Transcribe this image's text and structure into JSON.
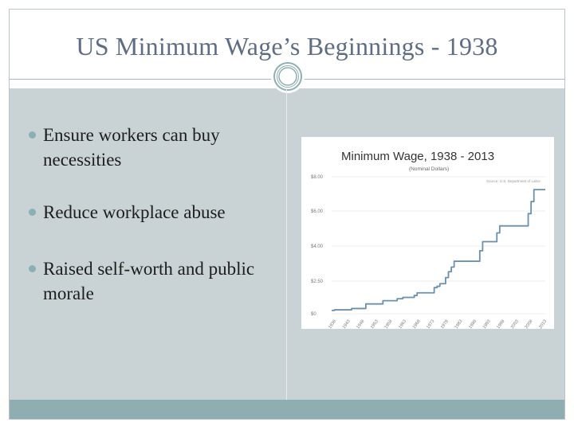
{
  "slide": {
    "title": "US Minimum Wage’s Beginnings - 1938",
    "bullets": [
      "Ensure workers can buy necessities",
      "Reduce workplace abuse",
      "Raised self-worth and public morale"
    ],
    "colors": {
      "title": "#5f6d84",
      "body_bg": "#c9d3d6",
      "footer": "#8faeb2",
      "bullet": "#8ab0b5",
      "line": "#6b90ad"
    }
  },
  "chart_data": {
    "type": "line",
    "title": "Minimum Wage, 1938 - 2013",
    "subtitle": "(Nominal Dollars)",
    "source_note": "Source: U.S. Department of Labor",
    "y_tick_labels": [
      "$8.00",
      "$6.00",
      "$4.00",
      "$2.50",
      "$0"
    ],
    "ylim": [
      0,
      8
    ],
    "x_tick_labels": [
      "1938",
      "1943",
      "1948",
      "1953",
      "1958",
      "1963",
      "1968",
      "1973",
      "1978",
      "1983",
      "1988",
      "1993",
      "1998",
      "2003",
      "2008",
      "2013"
    ],
    "xlim": [
      1938,
      2013
    ],
    "grid": "horizontal",
    "series": [
      {
        "x": [
          1938,
          1939,
          1945,
          1950,
          1956,
          1961,
          1963,
          1967,
          1968,
          1974,
          1975,
          1976,
          1978,
          1979,
          1980,
          1981,
          1990,
          1991,
          1996,
          1997,
          2007,
          2008,
          2009,
          2013
        ],
        "values": [
          0.25,
          0.3,
          0.4,
          0.75,
          1.0,
          1.15,
          1.25,
          1.4,
          1.6,
          2.0,
          2.1,
          2.3,
          2.65,
          2.9,
          3.1,
          3.35,
          3.8,
          4.25,
          4.75,
          5.15,
          5.85,
          6.55,
          7.25,
          7.25
        ]
      }
    ]
  }
}
